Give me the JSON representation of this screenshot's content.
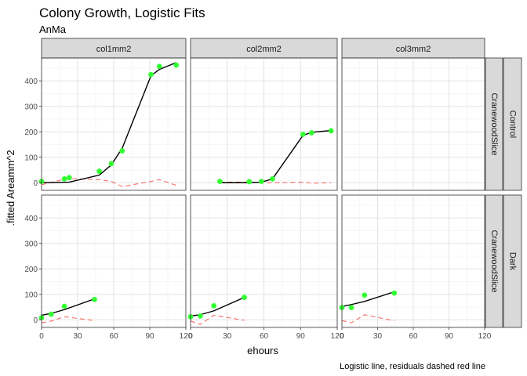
{
  "chart_data": {
    "type": "scatter",
    "title": "Colony Growth, Logistic Fits",
    "subtitle": "AnMa",
    "xlabel": "ehours",
    "ylabel": ".fitted Areamm^2",
    "caption": "Logistic line, residuals dashed red line",
    "xlim": [
      0,
      120
    ],
    "ylim": [
      -30,
      490
    ],
    "x_ticks": [
      0,
      30,
      60,
      90,
      120
    ],
    "y_ticks": [
      0,
      100,
      200,
      300,
      400
    ],
    "grid": true,
    "col_strips": [
      "col1mm2",
      "col2mm2",
      "col3mm2"
    ],
    "row_strips": [
      {
        "outer": "Control",
        "inner": "CranewoodSlice"
      },
      {
        "outer": "Dark",
        "inner": "CranewoodSlice"
      }
    ],
    "colors": {
      "points": "#33ff33",
      "fit_line": "#000000",
      "residual_line": "#f8766d"
    },
    "panels": [
      {
        "row": 0,
        "col": 0,
        "points": [
          [
            0,
            5
          ],
          [
            19,
            15
          ],
          [
            23,
            20
          ],
          [
            48,
            45
          ],
          [
            58,
            75
          ],
          [
            67,
            125
          ],
          [
            91,
            425
          ],
          [
            98,
            457
          ],
          [
            112,
            462
          ]
        ],
        "fit": [
          [
            0,
            0
          ],
          [
            23,
            2
          ],
          [
            48,
            30
          ],
          [
            58,
            70
          ],
          [
            67,
            135
          ],
          [
            91,
            420
          ],
          [
            98,
            445
          ],
          [
            112,
            472
          ]
        ],
        "residuals": [
          [
            0,
            -8
          ],
          [
            19,
            14
          ],
          [
            23,
            16
          ],
          [
            48,
            12
          ],
          [
            58,
            5
          ],
          [
            67,
            -15
          ],
          [
            91,
            5
          ],
          [
            98,
            12
          ],
          [
            112,
            -10
          ]
        ]
      },
      {
        "row": 0,
        "col": 1,
        "points": [
          [
            24,
            5
          ],
          [
            48,
            4
          ],
          [
            58,
            5
          ],
          [
            67,
            15
          ],
          [
            92,
            190
          ],
          [
            99,
            196
          ],
          [
            115,
            204
          ]
        ],
        "fit": [
          [
            24,
            0
          ],
          [
            48,
            0
          ],
          [
            58,
            2
          ],
          [
            67,
            15
          ],
          [
            92,
            186
          ],
          [
            99,
            198
          ],
          [
            115,
            205
          ]
        ],
        "residuals": [
          [
            24,
            2
          ],
          [
            48,
            2
          ],
          [
            58,
            0
          ],
          [
            67,
            0
          ],
          [
            92,
            2
          ],
          [
            99,
            -2
          ],
          [
            115,
            0
          ]
        ]
      },
      {
        "row": 0,
        "col": 2,
        "points": [],
        "fit": [],
        "residuals": []
      },
      {
        "row": 1,
        "col": 0,
        "points": [
          [
            0,
            8
          ],
          [
            8,
            22
          ],
          [
            19,
            53
          ],
          [
            44,
            80
          ]
        ],
        "fit": [
          [
            0,
            18
          ],
          [
            8,
            25
          ],
          [
            19,
            40
          ],
          [
            44,
            82
          ]
        ],
        "residuals": [
          [
            0,
            -12
          ],
          [
            8,
            -5
          ],
          [
            19,
            12
          ],
          [
            44,
            -3
          ]
        ]
      },
      {
        "row": 1,
        "col": 1,
        "points": [
          [
            0,
            12
          ],
          [
            8,
            15
          ],
          [
            19,
            55
          ],
          [
            44,
            88
          ]
        ],
        "fit": [
          [
            0,
            15
          ],
          [
            8,
            20
          ],
          [
            19,
            35
          ],
          [
            44,
            88
          ]
        ],
        "residuals": [
          [
            0,
            -5
          ],
          [
            8,
            -18
          ],
          [
            19,
            18
          ],
          [
            44,
            -2
          ]
        ]
      },
      {
        "row": 1,
        "col": 2,
        "points": [
          [
            0,
            48
          ],
          [
            8,
            48
          ],
          [
            19,
            97
          ],
          [
            44,
            105
          ]
        ],
        "fit": [
          [
            0,
            52
          ],
          [
            8,
            60
          ],
          [
            19,
            72
          ],
          [
            44,
            110
          ]
        ],
        "residuals": [
          [
            0,
            -3
          ],
          [
            8,
            -12
          ],
          [
            19,
            20
          ],
          [
            44,
            -4
          ]
        ]
      }
    ]
  }
}
